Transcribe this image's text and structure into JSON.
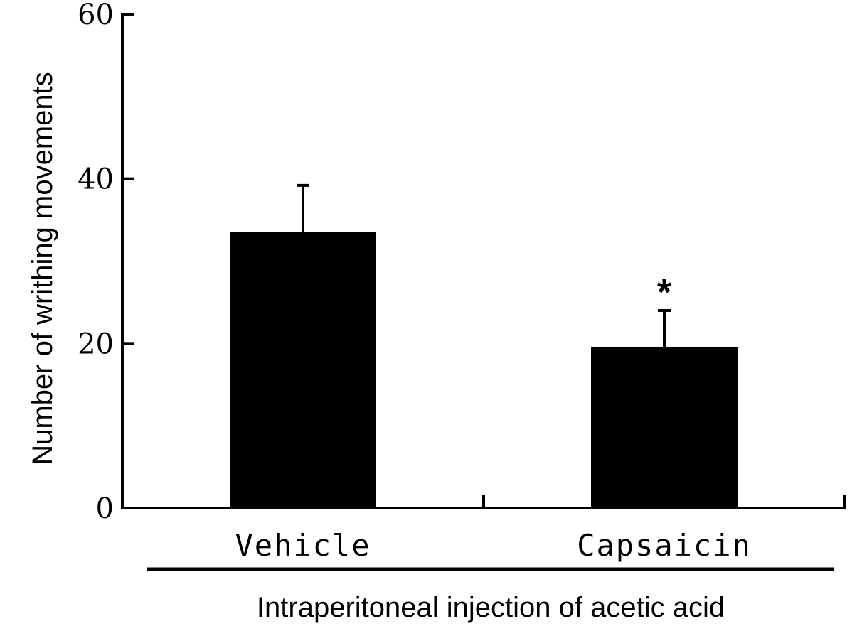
{
  "chart_data": {
    "type": "bar",
    "categories": [
      "Vehicle",
      "Capsaicin"
    ],
    "values": [
      33.5,
      19.6
    ],
    "errors": [
      5.7,
      4.4
    ],
    "significance": [
      "",
      "*"
    ],
    "title": "",
    "xlabel": "Intraperitoneal injection of acetic acid",
    "ylabel": "Number of writhing movements",
    "ylim": [
      0,
      60
    ],
    "yticks": [
      0,
      20,
      40,
      60
    ],
    "grid": false,
    "bar_color": "#000000"
  }
}
